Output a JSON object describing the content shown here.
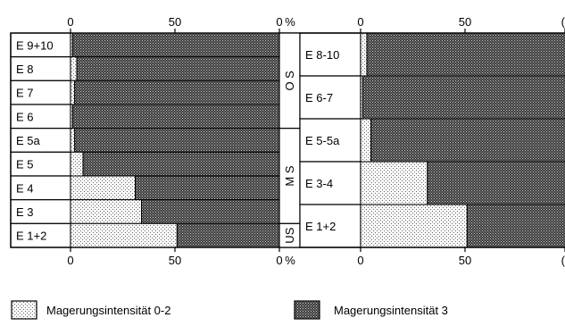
{
  "chart_data": [
    {
      "type": "bar",
      "orientation": "horizontal",
      "stacked": true,
      "xlim": [
        0,
        100
      ],
      "x_ticks": [
        "0",
        "50",
        "0"
      ],
      "unit": "%",
      "categories": [
        "E 9+10",
        "E 8",
        "E 7",
        "E 6",
        "E 5a",
        "E 5",
        "E 4",
        "E 3",
        "E 1+2"
      ],
      "series": [
        {
          "name": "Magerungsintensität 0-2",
          "values": [
            1,
            3,
            2,
            1,
            2,
            6,
            31,
            34,
            51
          ]
        },
        {
          "name": "Magerungsintensität 3",
          "values": [
            99,
            97,
            98,
            99,
            98,
            94,
            69,
            66,
            49
          ]
        }
      ],
      "groups": [
        {
          "label": "O S",
          "categories": [
            "E 9+10",
            "E 8",
            "E 7",
            "E 6"
          ]
        },
        {
          "label": "M S",
          "categories": [
            "E 5a",
            "E 5",
            "E 4",
            "E 3"
          ]
        },
        {
          "label": "US",
          "categories": [
            "E 1+2"
          ]
        }
      ]
    },
    {
      "type": "bar",
      "orientation": "horizontal",
      "stacked": true,
      "xlim": [
        0,
        100
      ],
      "x_ticks": [
        "0",
        "50",
        "("
      ],
      "categories": [
        "E 8-10",
        "E 6-7",
        "E 5-5a",
        "E 3-4",
        "E 1+2"
      ],
      "series": [
        {
          "name": "Magerungsintensität 0-2",
          "values": [
            3,
            1,
            5,
            32,
            51
          ]
        },
        {
          "name": "Magerungsintensität 3",
          "values": [
            97,
            99,
            95,
            68,
            49
          ]
        }
      ]
    }
  ],
  "legend": {
    "items": [
      {
        "label": "Magerungsintensität  0-2",
        "pattern": "light-dots"
      },
      {
        "label": "Magerungsintensität  3",
        "pattern": "dark-crosshatch"
      }
    ]
  }
}
